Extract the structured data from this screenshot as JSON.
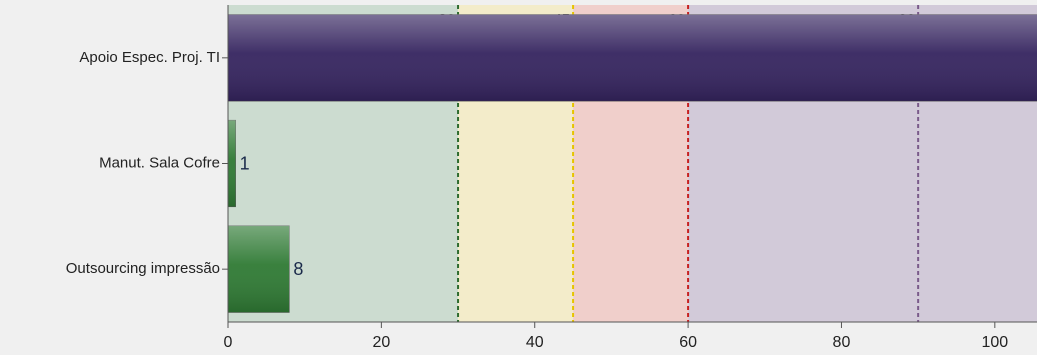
{
  "chart_data": {
    "type": "hbar",
    "categories": [
      "Apoio Espec. Proj. TI",
      "Manut. Sala Cofre",
      "Outsourcing impressão"
    ],
    "series": [
      {
        "values": [
          110,
          1,
          8
        ],
        "colors": [
          "#35245f",
          "#2f7a34",
          "#2f7a34"
        ]
      }
    ],
    "data_labels": [
      false,
      true,
      true
    ],
    "xlim": [
      0,
      105.5
    ],
    "xticks": [
      0,
      20,
      40,
      60,
      80,
      100
    ],
    "bands": [
      {
        "start": 0,
        "color": "#ccdcd0"
      },
      {
        "start": 30,
        "color": "#f3ecca"
      },
      {
        "start": 45,
        "color": "#f0cfcb"
      },
      {
        "start": 60,
        "color": "#d2cad9"
      }
    ],
    "reference_lines": [
      {
        "value": 30,
        "color": "#2e6b2e"
      },
      {
        "value": 45,
        "color": "#e6c400"
      },
      {
        "value": 60,
        "color": "#c62020"
      },
      {
        "value": 90,
        "color": "#7a5a8a"
      }
    ]
  }
}
